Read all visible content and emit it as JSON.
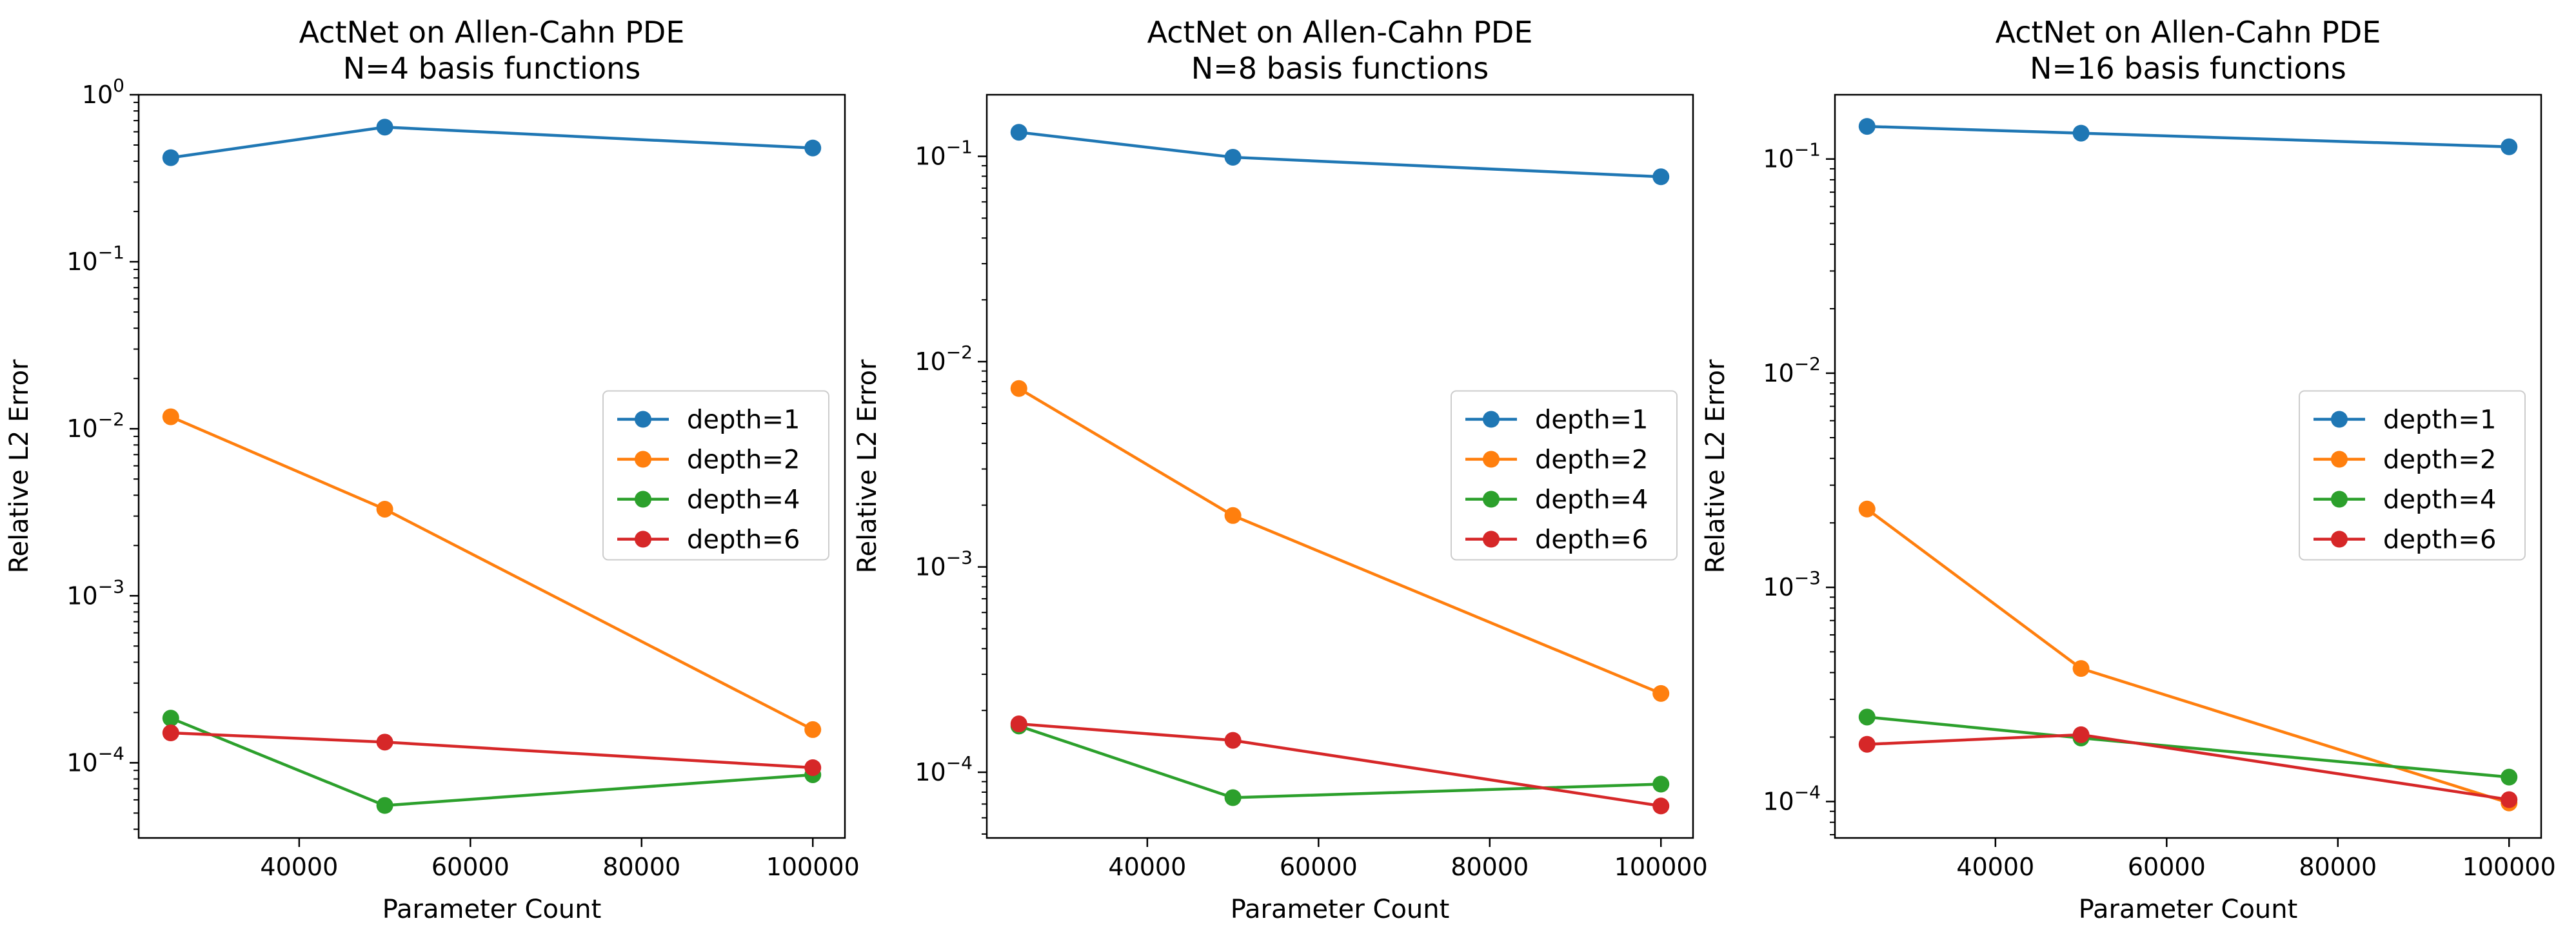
{
  "chart_data": [
    {
      "type": "line",
      "title_lines": [
        "ActNet on Allen-Cahn PDE",
        "N=4 basis functions"
      ],
      "xlabel": "Parameter Count",
      "ylabel": "Relative L2 Error",
      "yscale": "log",
      "xlim": [
        21250,
        103750
      ],
      "ylim_log10": [
        -4.45,
        0.0
      ],
      "x_ticks": [
        40000,
        60000,
        80000,
        100000
      ],
      "y_ticks": [
        {
          "exp": 0,
          "label": "10",
          "sup": "0"
        },
        {
          "exp": -1,
          "label": "10",
          "sup": "−1"
        },
        {
          "exp": -2,
          "label": "10",
          "sup": "−2"
        },
        {
          "exp": -3,
          "label": "10",
          "sup": "−3"
        },
        {
          "exp": -4,
          "label": "10",
          "sup": "−4"
        }
      ],
      "legend_position": "center-right",
      "series": [
        {
          "name": "depth=1",
          "color": "#1f77b4",
          "x": [
            25000,
            50000,
            100000
          ],
          "y": [
            0.42,
            0.64,
            0.48
          ]
        },
        {
          "name": "depth=2",
          "color": "#ff7f0e",
          "x": [
            25000,
            50000,
            100000
          ],
          "y": [
            0.0118,
            0.0033,
            0.000158
          ]
        },
        {
          "name": "depth=4",
          "color": "#2ca02c",
          "x": [
            25000,
            50000,
            100000
          ],
          "y": [
            0.000185,
            5.55e-05,
            8.48e-05
          ]
        },
        {
          "name": "depth=6",
          "color": "#d62728",
          "x": [
            25000,
            50000,
            100000
          ],
          "y": [
            0.000151,
            0.000133,
            9.35e-05
          ]
        }
      ]
    },
    {
      "type": "line",
      "title_lines": [
        "ActNet on Allen-Cahn PDE",
        "N=8 basis functions"
      ],
      "xlabel": "Parameter Count",
      "ylabel": "Relative L2 Error",
      "yscale": "log",
      "xlim": [
        21250,
        103750
      ],
      "ylim_log10": [
        -4.32,
        -0.7
      ],
      "x_ticks": [
        40000,
        60000,
        80000,
        100000
      ],
      "y_ticks": [
        {
          "exp": -1,
          "label": "10",
          "sup": "−1"
        },
        {
          "exp": -2,
          "label": "10",
          "sup": "−2"
        },
        {
          "exp": -3,
          "label": "10",
          "sup": "−3"
        },
        {
          "exp": -4,
          "label": "10",
          "sup": "−4"
        }
      ],
      "legend_position": "center-right",
      "series": [
        {
          "name": "depth=1",
          "color": "#1f77b4",
          "x": [
            25000,
            50000,
            100000
          ],
          "y": [
            0.131,
            0.099,
            0.0795
          ]
        },
        {
          "name": "depth=2",
          "color": "#ff7f0e",
          "x": [
            25000,
            50000,
            100000
          ],
          "y": [
            0.0074,
            0.00178,
            0.000242
          ]
        },
        {
          "name": "depth=4",
          "color": "#2ca02c",
          "x": [
            25000,
            50000,
            100000
          ],
          "y": [
            0.000168,
            7.52e-05,
            8.75e-05
          ]
        },
        {
          "name": "depth=6",
          "color": "#d62728",
          "x": [
            25000,
            50000,
            100000
          ],
          "y": [
            0.000172,
            0.000143,
            6.85e-05
          ]
        }
      ]
    },
    {
      "type": "line",
      "title_lines": [
        "ActNet on Allen-Cahn PDE",
        "N=16 basis functions"
      ],
      "xlabel": "Parameter Count",
      "ylabel": "Relative L2 Error",
      "yscale": "log",
      "xlim": [
        21250,
        103750
      ],
      "ylim_log10": [
        -4.17,
        -0.7
      ],
      "x_ticks": [
        40000,
        60000,
        80000,
        100000
      ],
      "y_ticks": [
        {
          "exp": -1,
          "label": "10",
          "sup": "−1"
        },
        {
          "exp": -2,
          "label": "10",
          "sup": "−2"
        },
        {
          "exp": -3,
          "label": "10",
          "sup": "−3"
        },
        {
          "exp": -4,
          "label": "10",
          "sup": "−4"
        }
      ],
      "legend_position": "center-right",
      "series": [
        {
          "name": "depth=1",
          "color": "#1f77b4",
          "x": [
            25000,
            50000,
            100000
          ],
          "y": [
            0.142,
            0.132,
            0.114
          ]
        },
        {
          "name": "depth=2",
          "color": "#ff7f0e",
          "x": [
            25000,
            50000,
            100000
          ],
          "y": [
            0.00232,
            0.000418,
            9.85e-05
          ]
        },
        {
          "name": "depth=4",
          "color": "#2ca02c",
          "x": [
            25000,
            50000,
            100000
          ],
          "y": [
            0.000248,
            0.000198,
            0.00013
          ]
        },
        {
          "name": "depth=6",
          "color": "#d62728",
          "x": [
            25000,
            50000,
            100000
          ],
          "y": [
            0.000185,
            0.000205,
            0.000102
          ]
        }
      ]
    }
  ]
}
